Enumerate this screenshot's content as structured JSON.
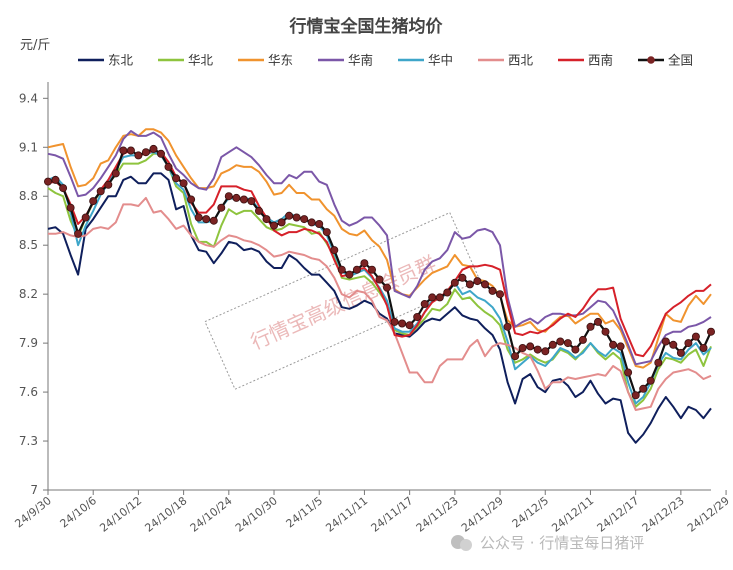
{
  "chart_data": {
    "type": "line",
    "title": "行情宝全国生猪均价",
    "ylabel": "元/斤",
    "ylim": [
      7.0,
      9.5
    ],
    "yticks": [
      "7",
      "7.3",
      "7.6",
      "7.9",
      "8.2",
      "8.5",
      "8.8",
      "9.1",
      "9.4"
    ],
    "x_tick_labels": [
      "24/9/30",
      "24/10/6",
      "24/10/12",
      "24/10/18",
      "24/10/24",
      "24/10/30",
      "24/11/5",
      "24/11/11",
      "24/11/17",
      "24/11/23",
      "24/11/29",
      "24/12/5",
      "24/12/11",
      "24/12/17",
      "24/12/23",
      "24/12/29"
    ],
    "x_start": "2024-09-30",
    "legend_position": "top",
    "series": [
      {
        "name": "东北",
        "color": "#0f1f5c",
        "values": [
          8.6,
          8.61,
          8.57,
          8.44,
          8.32,
          8.6,
          8.66,
          8.73,
          8.8,
          8.8,
          8.9,
          8.92,
          8.88,
          8.88,
          8.94,
          8.94,
          8.9,
          8.72,
          8.74,
          8.56,
          8.47,
          8.46,
          8.39,
          8.45,
          8.52,
          8.51,
          8.47,
          8.48,
          8.46,
          8.4,
          8.36,
          8.36,
          8.44,
          8.41,
          8.36,
          8.32,
          8.32,
          8.27,
          8.22,
          8.12,
          8.11,
          8.13,
          8.16,
          8.14,
          8.08,
          8.05,
          7.96,
          7.95,
          7.94,
          7.98,
          8.03,
          8.05,
          8.04,
          8.08,
          8.12,
          8.07,
          8.05,
          8.04,
          7.99,
          7.95,
          7.86,
          7.66,
          7.53,
          7.68,
          7.71,
          7.63,
          7.6,
          7.67,
          7.68,
          7.64,
          7.57,
          7.6,
          7.67,
          7.59,
          7.53,
          7.56,
          7.55,
          7.35,
          7.29,
          7.34,
          7.41,
          7.5,
          7.57,
          7.51,
          7.44,
          7.51,
          7.49,
          7.44,
          7.5
        ]
      },
      {
        "name": "华北",
        "color": "#8ec43e",
        "values": [
          8.85,
          8.82,
          8.8,
          8.65,
          8.55,
          8.67,
          8.76,
          8.83,
          8.88,
          8.93,
          9.0,
          9.0,
          9.0,
          9.02,
          9.06,
          9.06,
          8.98,
          8.86,
          8.82,
          8.63,
          8.52,
          8.52,
          8.49,
          8.62,
          8.72,
          8.69,
          8.71,
          8.71,
          8.66,
          8.61,
          8.59,
          8.6,
          8.63,
          8.62,
          8.61,
          8.57,
          8.58,
          8.51,
          8.43,
          8.3,
          8.29,
          8.3,
          8.31,
          8.27,
          8.21,
          8.14,
          7.98,
          7.96,
          7.95,
          8.0,
          8.05,
          8.11,
          8.1,
          8.14,
          8.23,
          8.17,
          8.18,
          8.13,
          8.09,
          8.06,
          8.01,
          7.86,
          7.78,
          7.8,
          7.83,
          7.8,
          7.78,
          7.8,
          7.86,
          7.84,
          7.8,
          7.85,
          7.9,
          7.84,
          7.8,
          7.84,
          7.8,
          7.6,
          7.51,
          7.55,
          7.62,
          7.74,
          7.81,
          7.8,
          7.78,
          7.83,
          7.86,
          7.76,
          7.88
        ]
      },
      {
        "name": "华东",
        "color": "#f0932e",
        "values": [
          9.1,
          9.11,
          9.12,
          8.98,
          8.86,
          8.87,
          8.91,
          9.0,
          9.02,
          9.1,
          9.17,
          9.18,
          9.17,
          9.21,
          9.21,
          9.19,
          9.14,
          9.05,
          8.98,
          8.91,
          8.85,
          8.85,
          8.86,
          8.94,
          8.96,
          8.99,
          8.98,
          8.98,
          8.95,
          8.89,
          8.81,
          8.82,
          8.87,
          8.82,
          8.82,
          8.78,
          8.78,
          8.72,
          8.68,
          8.6,
          8.57,
          8.56,
          8.59,
          8.53,
          8.49,
          8.41,
          8.23,
          8.2,
          8.19,
          8.24,
          8.29,
          8.33,
          8.35,
          8.37,
          8.44,
          8.38,
          8.37,
          8.29,
          8.28,
          8.25,
          8.19,
          8.04,
          8.0,
          8.01,
          8.03,
          7.98,
          7.97,
          8.02,
          8.06,
          8.07,
          8.02,
          8.05,
          8.08,
          8.08,
          8.02,
          8.04,
          7.98,
          7.87,
          7.76,
          7.75,
          7.78,
          7.93,
          8.08,
          8.04,
          8.03,
          8.13,
          8.19,
          8.14,
          8.2
        ]
      },
      {
        "name": "华南",
        "color": "#7b57a8",
        "values": [
          9.06,
          9.05,
          9.03,
          8.92,
          8.8,
          8.81,
          8.85,
          8.91,
          8.98,
          9.05,
          9.15,
          9.2,
          9.17,
          9.17,
          9.19,
          9.16,
          9.06,
          8.97,
          8.93,
          8.88,
          8.85,
          8.84,
          8.91,
          9.04,
          9.07,
          9.1,
          9.07,
          9.04,
          8.99,
          8.93,
          8.88,
          8.88,
          8.93,
          8.91,
          8.95,
          8.95,
          8.89,
          8.87,
          8.75,
          8.65,
          8.62,
          8.64,
          8.67,
          8.67,
          8.62,
          8.56,
          8.22,
          8.2,
          8.18,
          8.25,
          8.35,
          8.4,
          8.42,
          8.47,
          8.58,
          8.54,
          8.55,
          8.59,
          8.6,
          8.58,
          8.5,
          8.18,
          8.0,
          8.03,
          8.05,
          8.02,
          8.06,
          8.08,
          8.08,
          8.07,
          8.07,
          8.08,
          8.12,
          8.16,
          8.15,
          8.1,
          8.0,
          7.89,
          7.77,
          7.78,
          7.79,
          7.88,
          7.95,
          7.97,
          7.97,
          8.0,
          8.01,
          8.03,
          8.06
        ]
      },
      {
        "name": "华中",
        "color": "#3ea6c9",
        "values": [
          8.9,
          8.92,
          8.87,
          8.7,
          8.5,
          8.62,
          8.71,
          8.81,
          8.88,
          8.96,
          9.04,
          9.05,
          9.05,
          9.06,
          9.07,
          9.05,
          8.98,
          8.88,
          8.84,
          8.72,
          8.64,
          8.64,
          8.65,
          8.73,
          8.79,
          8.78,
          8.79,
          8.78,
          8.72,
          8.67,
          8.64,
          8.66,
          8.7,
          8.67,
          8.66,
          8.63,
          8.62,
          8.56,
          8.45,
          8.34,
          8.31,
          8.33,
          8.35,
          8.3,
          8.24,
          8.16,
          7.99,
          7.97,
          7.97,
          8.02,
          8.09,
          8.16,
          8.17,
          8.21,
          8.27,
          8.2,
          8.22,
          8.18,
          8.16,
          8.12,
          8.05,
          7.91,
          7.74,
          7.78,
          7.82,
          7.78,
          7.76,
          7.81,
          7.87,
          7.85,
          7.81,
          7.84,
          7.9,
          7.85,
          7.82,
          7.87,
          7.84,
          7.66,
          7.53,
          7.57,
          7.66,
          7.77,
          7.84,
          7.81,
          7.8,
          7.86,
          7.9,
          7.83,
          7.87
        ]
      },
      {
        "name": "西北",
        "color": "#e38d8d",
        "values": [
          8.57,
          8.57,
          8.58,
          8.56,
          8.55,
          8.56,
          8.6,
          8.61,
          8.6,
          8.64,
          8.75,
          8.75,
          8.74,
          8.79,
          8.7,
          8.71,
          8.66,
          8.6,
          8.62,
          8.56,
          8.52,
          8.5,
          8.49,
          8.53,
          8.56,
          8.55,
          8.53,
          8.52,
          8.5,
          8.47,
          8.43,
          8.44,
          8.46,
          8.45,
          8.44,
          8.42,
          8.41,
          8.37,
          8.3,
          8.2,
          8.18,
          8.22,
          8.21,
          8.16,
          8.06,
          8.04,
          7.96,
          7.84,
          7.72,
          7.72,
          7.66,
          7.66,
          7.76,
          7.8,
          7.8,
          7.8,
          7.88,
          7.92,
          7.82,
          7.88,
          7.9,
          7.89,
          7.87,
          7.84,
          7.82,
          7.73,
          7.62,
          7.66,
          7.66,
          7.69,
          7.68,
          7.69,
          7.7,
          7.71,
          7.7,
          7.76,
          7.73,
          7.6,
          7.49,
          7.5,
          7.51,
          7.62,
          7.68,
          7.72,
          7.73,
          7.74,
          7.72,
          7.68,
          7.7
        ]
      },
      {
        "name": "西南",
        "color": "#d6212a",
        "values": [
          8.88,
          8.89,
          8.85,
          8.75,
          8.63,
          8.68,
          8.76,
          8.84,
          8.9,
          8.98,
          9.06,
          9.08,
          9.05,
          9.06,
          9.08,
          9.07,
          9.01,
          8.92,
          8.88,
          8.76,
          8.7,
          8.7,
          8.75,
          8.86,
          8.86,
          8.86,
          8.84,
          8.83,
          8.74,
          8.67,
          8.59,
          8.56,
          8.58,
          8.58,
          8.6,
          8.59,
          8.57,
          8.52,
          8.41,
          8.31,
          8.32,
          8.35,
          8.36,
          8.31,
          8.23,
          8.13,
          7.95,
          7.94,
          7.95,
          8.01,
          8.09,
          8.15,
          8.18,
          8.22,
          8.28,
          8.35,
          8.37,
          8.37,
          8.38,
          8.37,
          8.35,
          8.14,
          7.96,
          7.95,
          7.97,
          7.96,
          7.98,
          8.01,
          8.05,
          8.08,
          8.06,
          8.11,
          8.18,
          8.23,
          8.23,
          8.24,
          8.05,
          7.94,
          7.83,
          7.82,
          7.88,
          7.98,
          8.08,
          8.12,
          8.15,
          8.19,
          8.22,
          8.22,
          8.26
        ]
      },
      {
        "name": "全国",
        "color": "#7a2323",
        "values": [
          8.89,
          8.9,
          8.85,
          8.73,
          8.57,
          8.67,
          8.77,
          8.83,
          8.87,
          8.94,
          9.08,
          9.08,
          9.05,
          9.07,
          9.09,
          9.06,
          8.98,
          8.91,
          8.88,
          8.78,
          8.67,
          8.66,
          8.65,
          8.73,
          8.8,
          8.79,
          8.78,
          8.77,
          8.71,
          8.66,
          8.62,
          8.64,
          8.68,
          8.67,
          8.66,
          8.64,
          8.63,
          8.58,
          8.47,
          8.35,
          8.32,
          8.35,
          8.39,
          8.35,
          8.29,
          8.24,
          8.03,
          8.02,
          8.01,
          8.06,
          8.14,
          8.18,
          8.18,
          8.21,
          8.27,
          8.3,
          8.26,
          8.28,
          8.26,
          8.22,
          8.2,
          8.0,
          7.82,
          7.87,
          7.88,
          7.86,
          7.85,
          7.89,
          7.91,
          7.9,
          7.86,
          7.92,
          8.0,
          8.03,
          7.97,
          7.89,
          7.88,
          7.72,
          7.58,
          7.62,
          7.67,
          7.78,
          7.91,
          7.89,
          7.84,
          7.9,
          7.94,
          7.87,
          7.97
        ]
      }
    ]
  },
  "watermark": {
    "text": "行情宝高级信息会员群",
    "footer": "公众号 · 行情宝每日猪评"
  }
}
